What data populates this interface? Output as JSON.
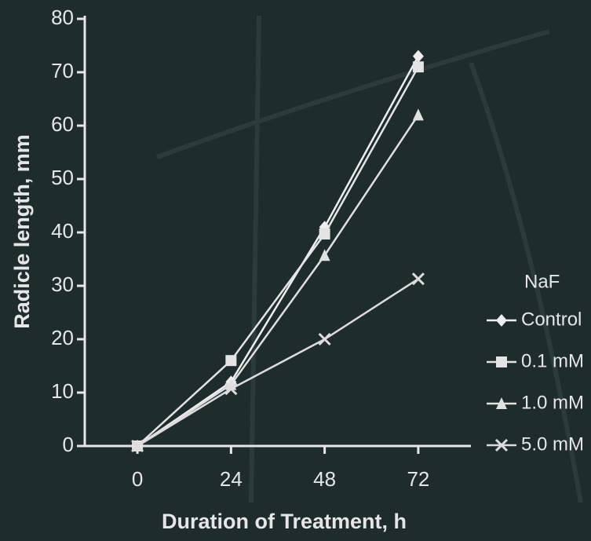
{
  "chart_data": {
    "type": "line",
    "xlabel": "Duration of Treatment, h",
    "ylabel": "Radicle length, mm",
    "x": [
      0,
      24,
      48,
      72
    ],
    "xlim": [
      -13.5,
      85.5
    ],
    "xticks": [
      0,
      24,
      48,
      72
    ],
    "ylim": [
      0,
      80
    ],
    "yticks": [
      0,
      10,
      20,
      30,
      40,
      50,
      60,
      70,
      80
    ],
    "legend_title": "NaF",
    "legend_position": "right",
    "series": [
      {
        "name": "Control",
        "color": "#eeeeee",
        "marker": "diamond",
        "values": [
          0,
          12,
          41,
          73
        ]
      },
      {
        "name": "0.1 mM",
        "color": "#e4e4e4",
        "marker": "square",
        "values": [
          0,
          16,
          39.7,
          71
        ]
      },
      {
        "name": "1.0 mM",
        "color": "#e0e0e0",
        "marker": "triangle",
        "values": [
          0,
          11.5,
          35.7,
          62
        ]
      },
      {
        "name": "5.0 mM",
        "color": "#dcdcdc",
        "marker": "x",
        "values": [
          0,
          10.7,
          20,
          31.3
        ]
      }
    ]
  }
}
